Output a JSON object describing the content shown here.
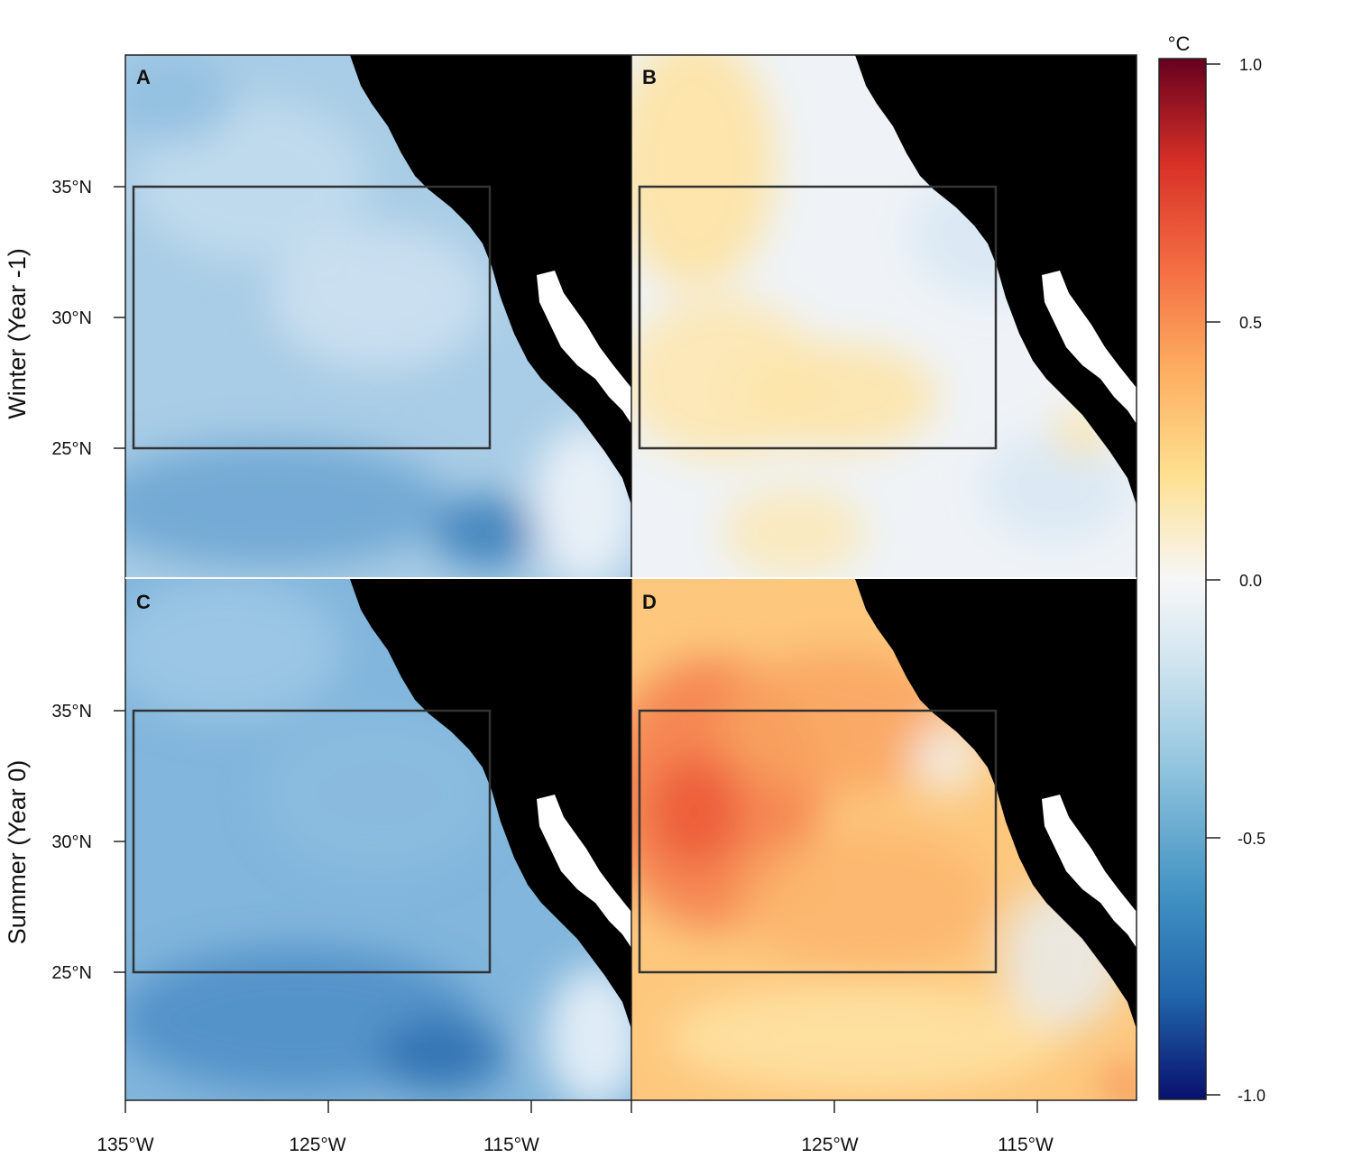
{
  "panels": [
    {
      "letter": "A",
      "season": "winter",
      "anomaly_mean_c": -0.35
    },
    {
      "letter": "B",
      "season": "winter",
      "anomaly_mean_c": 0.08
    },
    {
      "letter": "C",
      "season": "summer",
      "anomaly_mean_c": -0.45
    },
    {
      "letter": "D",
      "season": "summer",
      "anomaly_mean_c": 0.35
    }
  ],
  "row_labels": [
    "Winter (Year -1)",
    "Summer (Year 0)"
  ],
  "lat_ticks": [
    "35°N",
    "30°N",
    "25°N"
  ],
  "lon_ticks_left": [
    "135°W",
    "125°W",
    "115°W"
  ],
  "lon_ticks_right": [
    "125°W",
    "115°W"
  ],
  "colorbar": {
    "unit": "°C",
    "ticks": [
      "1.0",
      "0.5",
      "0.0",
      "-0.5",
      "-1.0"
    ],
    "range": [
      -1.0,
      1.0
    ],
    "colors": [
      "#08106e",
      "#2166ac",
      "#4393c3",
      "#92c5de",
      "#d1e5f0",
      "#f7f7f7",
      "#fee090",
      "#fdae61",
      "#f46d43",
      "#d73027",
      "#67001f"
    ]
  },
  "study_box": {
    "lon": [
      -134.6,
      -117
    ],
    "lat": [
      25,
      35
    ]
  },
  "colors": {
    "land": "#000000",
    "baja_gulf": "#ffffff",
    "box_stroke": "#333333"
  }
}
